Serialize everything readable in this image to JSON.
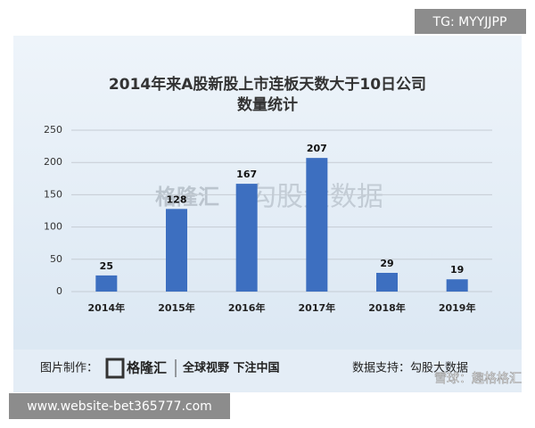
{
  "chart_data": {
    "type": "bar",
    "title": [
      "2014年来A股新股上市连板天数大于10日公司",
      "数量统计"
    ],
    "categories": [
      "2014年",
      "2015年",
      "2016年",
      "2017年",
      "2018年",
      "2019年"
    ],
    "values": [
      25,
      128,
      167,
      207,
      29,
      19
    ],
    "color": "#3d6fc0",
    "ylim": [
      0,
      250
    ],
    "yticks": [
      0,
      50,
      100,
      150,
      200,
      250
    ],
    "grid": true
  },
  "watermark": {
    "logo": "格隆汇",
    "brand": "勾股大数据"
  },
  "footer": {
    "made_by": "图片制作：",
    "logo": "格隆汇",
    "slogan": "全球视野 下注中国",
    "data_source": "数据支持：勾股大数据"
  },
  "overlays": {
    "top_right": "TG: MYYJJPP",
    "bottom_left": "www.website-bet365777.com",
    "bottom_right": "雪球：趣格格汇"
  }
}
